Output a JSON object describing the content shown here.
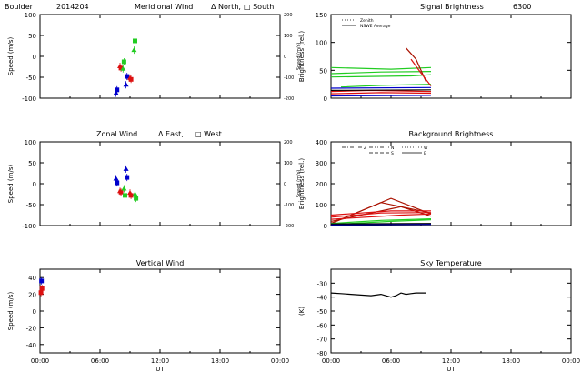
{
  "figure": {
    "station": "Boulder",
    "date": "2014204",
    "xlabel": "UT",
    "time_ticks": [
      "00:00",
      "06:00",
      "12:00",
      "18:00",
      "00:00"
    ]
  },
  "colors": {
    "blue": "#0000cc",
    "red": "#dd1111",
    "green": "#22cc22",
    "darkred": "#aa1100",
    "black": "#000000"
  },
  "chart_data": [
    {
      "id": "meridional",
      "type": "scatter",
      "title": "Meridional Wind",
      "legend_a": "Δ North,",
      "legend_b": "□ South",
      "ylabel": "Speed (m/s)",
      "ylabel_right": "Speed (m/s)",
      "ylim": [
        -100,
        100
      ],
      "yticks": [
        "100",
        "50",
        "0",
        "-50",
        "-100"
      ],
      "ylim_right": [
        -200,
        200
      ],
      "yticks_right": [
        "200",
        "100",
        "0",
        "-100",
        "-200"
      ],
      "xlim": [
        0,
        24
      ],
      "series": [
        {
          "name": "North",
          "marker": "triangle",
          "color": "blue",
          "x": [
            7.6,
            8.6
          ],
          "y": [
            -88,
            -68
          ]
        },
        {
          "name": "South",
          "marker": "square",
          "color": "blue",
          "x": [
            7.7,
            8.7
          ],
          "y": [
            -80,
            -48
          ]
        },
        {
          "name": "North",
          "marker": "triangle",
          "color": "red",
          "x": [
            8.0,
            9.0
          ],
          "y": [
            -24,
            -52
          ]
        },
        {
          "name": "South",
          "marker": "square",
          "color": "red",
          "x": [
            8.1,
            9.1
          ],
          "y": [
            -28,
            -55
          ]
        },
        {
          "name": "North",
          "marker": "triangle",
          "color": "green",
          "x": [
            8.3,
            9.4
          ],
          "y": [
            -30,
            15
          ]
        },
        {
          "name": "South",
          "marker": "square",
          "color": "green",
          "x": [
            8.4,
            9.5
          ],
          "y": [
            -13,
            37
          ]
        }
      ]
    },
    {
      "id": "signal",
      "type": "line",
      "title": "Signal Brightness",
      "title_tag": "6300",
      "ylabel": "Brightness (rel.)",
      "ylim": [
        0,
        150
      ],
      "yticks": [
        "150",
        "100",
        "50",
        "0"
      ],
      "xlim": [
        0,
        24
      ],
      "legend": [
        {
          "label": "Zenith",
          "style": "dotted"
        },
        {
          "label": "NSWE Average",
          "style": "solid"
        }
      ],
      "series": [
        {
          "name": "green-1",
          "color": "green",
          "x": [
            0,
            6,
            10
          ],
          "y": [
            55,
            52,
            55
          ]
        },
        {
          "name": "green-2",
          "color": "green",
          "x": [
            0,
            5,
            10
          ],
          "y": [
            44,
            47,
            48
          ]
        },
        {
          "name": "green-3",
          "color": "green",
          "x": [
            0,
            8,
            10
          ],
          "y": [
            38,
            40,
            42
          ]
        },
        {
          "name": "green-4",
          "color": "green",
          "x": [
            1,
            5,
            10
          ],
          "y": [
            20,
            23,
            25
          ]
        },
        {
          "name": "red-1",
          "color": "darkred",
          "x": [
            7.5,
            8.5,
            9.5
          ],
          "y": [
            90,
            70,
            30
          ]
        },
        {
          "name": "red-2",
          "color": "red",
          "x": [
            8,
            9,
            10
          ],
          "y": [
            70,
            45,
            22
          ]
        },
        {
          "name": "red-3",
          "color": "red",
          "x": [
            0,
            4,
            10
          ],
          "y": [
            12,
            14,
            12
          ]
        },
        {
          "name": "red-4",
          "color": "red",
          "x": [
            0,
            5,
            10
          ],
          "y": [
            8,
            10,
            9
          ]
        },
        {
          "name": "blue-1",
          "color": "blue",
          "x": [
            0,
            10
          ],
          "y": [
            4,
            5
          ]
        },
        {
          "name": "blue-2",
          "color": "blue",
          "x": [
            0,
            10
          ],
          "y": [
            18,
            19
          ]
        },
        {
          "name": "black-1",
          "color": "black",
          "x": [
            0,
            10
          ],
          "y": [
            14,
            15
          ]
        }
      ]
    },
    {
      "id": "zonal",
      "type": "scatter",
      "title": "Zonal Wind",
      "legend_a": "Δ East,",
      "legend_b": "□ West",
      "ylabel": "Speed (m/s)",
      "ylabel_right": "Speed (m/s)",
      "ylim": [
        -100,
        100
      ],
      "yticks": [
        "100",
        "50",
        "0",
        "-50",
        "-100"
      ],
      "ylim_right": [
        -200,
        200
      ],
      "yticks_right": [
        "200",
        "100",
        "0",
        "-100",
        "-200"
      ],
      "xlim": [
        0,
        24
      ],
      "series": [
        {
          "name": "East",
          "marker": "triangle",
          "color": "blue",
          "x": [
            7.6,
            8.6
          ],
          "y": [
            12,
            35
          ]
        },
        {
          "name": "West",
          "marker": "square",
          "color": "blue",
          "x": [
            7.7,
            8.7
          ],
          "y": [
            2,
            15
          ]
        },
        {
          "name": "East",
          "marker": "triangle",
          "color": "red",
          "x": [
            8.0,
            9.0
          ],
          "y": [
            -18,
            -22
          ]
        },
        {
          "name": "West",
          "marker": "square",
          "color": "red",
          "x": [
            8.1,
            9.1
          ],
          "y": [
            -20,
            -28
          ]
        },
        {
          "name": "East",
          "marker": "triangle",
          "color": "green",
          "x": [
            8.4,
            9.5
          ],
          "y": [
            -12,
            -25
          ]
        },
        {
          "name": "West",
          "marker": "square",
          "color": "green",
          "x": [
            8.5,
            9.6
          ],
          "y": [
            -28,
            -35
          ]
        }
      ]
    },
    {
      "id": "background",
      "type": "line",
      "title": "Background Brightness",
      "ylabel": "Brightness (rel.)",
      "ylim": [
        0,
        400
      ],
      "yticks": [
        "400",
        "300",
        "200",
        "100",
        "0"
      ],
      "xlim": [
        0,
        24
      ],
      "legend": [
        {
          "label": "Z",
          "style": "dashdot"
        },
        {
          "label": "N",
          "style": "dashdotdot"
        },
        {
          "label": "S",
          "style": "dashed"
        },
        {
          "label": "W",
          "style": "dotted"
        },
        {
          "label": "E",
          "style": "solid"
        }
      ],
      "series": [
        {
          "name": "darkred-1",
          "color": "darkred",
          "x": [
            0,
            6,
            10
          ],
          "y": [
            10,
            130,
            55
          ]
        },
        {
          "name": "darkred-2",
          "color": "darkred",
          "x": [
            0,
            5,
            10
          ],
          "y": [
            10,
            110,
            60
          ]
        },
        {
          "name": "darkred-3",
          "color": "darkred",
          "x": [
            0,
            7,
            10
          ],
          "y": [
            20,
            90,
            45
          ]
        },
        {
          "name": "red-1",
          "color": "red",
          "x": [
            0,
            6,
            10
          ],
          "y": [
            50,
            70,
            70
          ]
        },
        {
          "name": "red-2",
          "color": "red",
          "x": [
            0,
            5,
            10
          ],
          "y": [
            40,
            60,
            62
          ]
        },
        {
          "name": "red-3",
          "color": "red",
          "x": [
            0,
            7,
            10
          ],
          "y": [
            30,
            50,
            55
          ]
        },
        {
          "name": "green-1",
          "color": "green",
          "x": [
            0,
            5,
            10
          ],
          "y": [
            10,
            25,
            32
          ]
        },
        {
          "name": "green-2",
          "color": "green",
          "x": [
            0,
            6,
            10
          ],
          "y": [
            5,
            20,
            28
          ]
        },
        {
          "name": "blue-1",
          "color": "blue",
          "x": [
            0,
            10
          ],
          "y": [
            4,
            6
          ]
        },
        {
          "name": "black-1",
          "color": "black",
          "x": [
            0,
            10
          ],
          "y": [
            8,
            10
          ]
        }
      ]
    },
    {
      "id": "vertical",
      "type": "scatter",
      "title": "Vertical Wind",
      "ylabel": "Speed (m/s)",
      "ylim": [
        -50,
        50
      ],
      "yticks": [
        "40",
        "20",
        "0",
        "-20",
        "-40"
      ],
      "yticks_values": [
        40,
        20,
        0,
        -20,
        -40
      ],
      "xlim": [
        0,
        24
      ],
      "series": [
        {
          "name": "points-red",
          "marker": "square",
          "color": "red",
          "x": [
            0.1,
            0.2
          ],
          "y": [
            22,
            27
          ]
        },
        {
          "name": "points-blue",
          "marker": "square",
          "color": "blue",
          "x": [
            0.15
          ],
          "y": [
            36
          ]
        }
      ]
    },
    {
      "id": "skytemp",
      "type": "line",
      "title": "Sky Temperature",
      "ylabel": "(K)",
      "ylim": [
        -80,
        -20
      ],
      "yticks": [
        "-30",
        "-40",
        "-50",
        "-60",
        "-70",
        "-80"
      ],
      "yticks_values": [
        -30,
        -40,
        -50,
        -60,
        -70,
        -80
      ],
      "xlim": [
        0,
        24
      ],
      "series": [
        {
          "name": "sky",
          "color": "black",
          "x": [
            0,
            1,
            2,
            3,
            4,
            5,
            6,
            6.5,
            7,
            7.5,
            8,
            8.5,
            9.5
          ],
          "y": [
            -37,
            -37.5,
            -38,
            -38.5,
            -39,
            -38,
            -40,
            -39,
            -37,
            -38,
            -37.5,
            -37,
            -37
          ]
        }
      ]
    }
  ]
}
